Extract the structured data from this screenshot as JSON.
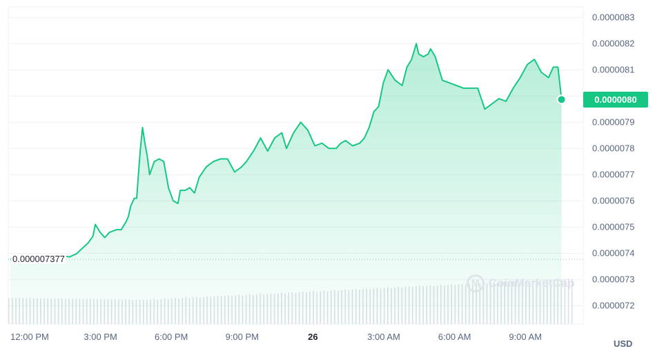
{
  "chart_data": {
    "type": "area",
    "x_ticks": [
      "12:00 PM",
      "3:00 PM",
      "6:00 PM",
      "9:00 PM",
      "26",
      "3:00 AM",
      "6:00 AM",
      "9:00 AM"
    ],
    "x_tick_hours": [
      0,
      3,
      6,
      9,
      12,
      15,
      18,
      21
    ],
    "y_ticks": [
      "0.0000083",
      "0.0000082",
      "0.0000081",
      "0.0000080",
      "0.0000079",
      "0.0000078",
      "0.0000077",
      "0.0000076",
      "0.0000075",
      "0.0000074",
      "0.0000073",
      "0.0000072"
    ],
    "ylim": [
      7.13e-06,
      8.34e-06
    ],
    "reference_price": 7.377e-06,
    "reference_label": "0.000007377",
    "current_price_label": "0.0000080",
    "current_price": 7.9866e-06,
    "currency": "USD",
    "watermark": "CoinMarketCap",
    "line_color": "#16c784",
    "series": [
      {
        "x_hours": [
          0,
          0.3,
          0.6,
          0.9,
          1.2,
          1.5,
          1.8,
          2.0,
          2.2,
          2.5,
          2.8,
          3.0,
          3.3,
          3.5,
          3.6,
          3.8,
          4.0,
          4.2,
          4.5,
          4.7,
          4.9,
          5.0,
          5.1,
          5.25,
          5.35,
          5.5,
          5.6,
          5.7,
          5.8,
          5.9,
          6.1,
          6.3,
          6.5,
          6.7,
          6.9,
          7.1,
          7.2,
          7.4,
          7.6,
          7.8,
          8.0,
          8.3,
          8.6,
          8.9,
          9.2,
          9.5,
          9.8,
          10.0,
          10.3,
          10.6,
          10.9,
          11.2,
          11.5,
          11.7,
          12.0,
          12.3,
          12.6,
          12.9,
          13.2,
          13.5,
          13.8,
          14.0,
          14.2,
          14.5,
          14.8,
          15.0,
          15.2,
          15.4,
          15.6,
          15.8,
          16.0,
          16.3,
          16.6,
          16.8,
          17.0,
          17.2,
          17.3,
          17.5,
          17.7,
          17.8,
          18.0,
          18.3,
          18.6,
          18.9,
          19.2,
          19.5,
          19.8,
          20.1,
          20.4,
          20.7,
          21.0,
          21.3,
          21.6,
          21.9,
          22.2,
          22.5,
          22.8,
          23.0,
          23.2,
          23.35
        ],
        "values": [
          7.377e-06,
          7.378e-06,
          7.3775e-06,
          7.38e-06,
          7.382e-06,
          7.379e-06,
          7.378e-06,
          7.385e-06,
          7.391e-06,
          7.386e-06,
          7.398e-06,
          7.415e-06,
          7.44e-06,
          7.465e-06,
          7.51e-06,
          7.48e-06,
          7.46e-06,
          7.48e-06,
          7.49e-06,
          7.49e-06,
          7.52e-06,
          7.54e-06,
          7.58e-06,
          7.61e-06,
          7.61e-06,
          7.79e-06,
          7.88e-06,
          7.82e-06,
          7.77e-06,
          7.7e-06,
          7.75e-06,
          7.76e-06,
          7.75e-06,
          7.65e-06,
          7.6e-06,
          7.59e-06,
          7.64e-06,
          7.64e-06,
          7.65e-06,
          7.63e-06,
          7.69e-06,
          7.73e-06,
          7.75e-06,
          7.76e-06,
          7.76e-06,
          7.71e-06,
          7.73e-06,
          7.75e-06,
          7.79e-06,
          7.84e-06,
          7.79e-06,
          7.84e-06,
          7.86e-06,
          7.8e-06,
          7.86e-06,
          7.9e-06,
          7.87e-06,
          7.81e-06,
          7.82e-06,
          7.8e-06,
          7.8e-06,
          7.82e-06,
          7.83e-06,
          7.81e-06,
          7.82e-06,
          7.84e-06,
          7.88e-06,
          7.94e-06,
          7.96e-06,
          8.05e-06,
          8.1e-06,
          8.06e-06,
          8.04e-06,
          8.11e-06,
          8.14e-06,
          8.2e-06,
          8.16e-06,
          8.15e-06,
          8.16e-06,
          8.18e-06,
          8.15e-06,
          8.06e-06,
          8.05e-06,
          8.04e-06,
          8.03e-06,
          8.03e-06,
          8.03e-06,
          7.95e-06,
          7.97e-06,
          7.99e-06,
          7.98e-06,
          8.03e-06,
          8.07e-06,
          8.12e-06,
          8.14e-06,
          8.09e-06,
          8.07e-06,
          8.11e-06,
          8.11e-06,
          7.9866e-06
        ]
      }
    ],
    "volume_bar_count": 160
  }
}
